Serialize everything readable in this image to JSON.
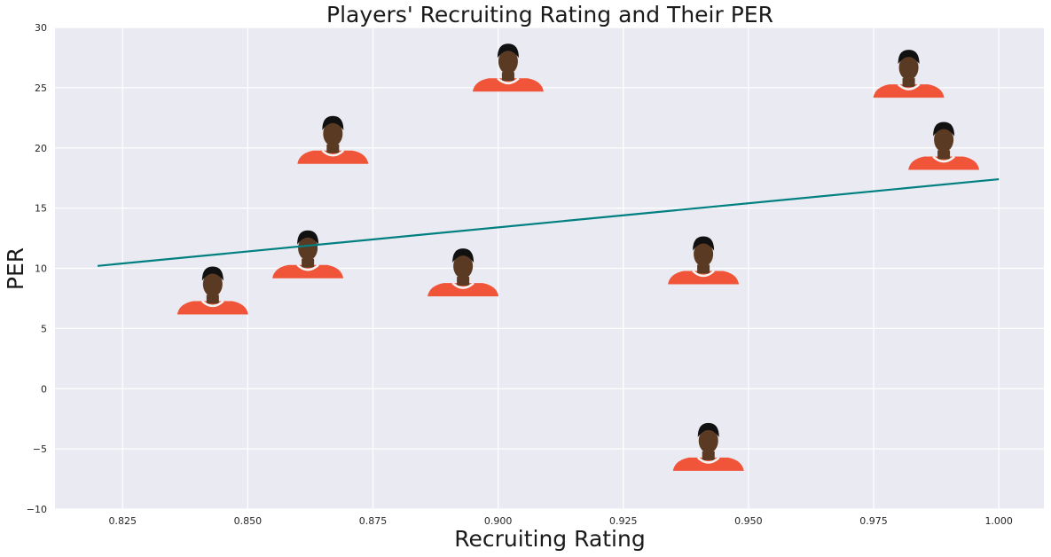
{
  "colors": {
    "plot_background": "#EAEAF2",
    "grid": "#FFFFFF",
    "trend_line": "#008080",
    "jersey": "#F0553A",
    "jersey_trim": "#F3F3F3",
    "skin": "#5A3A22",
    "hair": "#111111"
  },
  "chart_data": {
    "type": "scatter",
    "title": "Players' Recruiting Rating and Their PER",
    "xlabel": "Recruiting Rating",
    "ylabel": "PER",
    "xlim": [
      0.8115,
      1.009
    ],
    "ylim": [
      -10,
      30
    ],
    "xticks": [
      "0.825",
      "0.850",
      "0.875",
      "0.900",
      "0.925",
      "0.950",
      "0.975",
      "1.000"
    ],
    "yticks": [
      "−10",
      "−5",
      "0",
      "5",
      "10",
      "15",
      "20",
      "25",
      "30"
    ],
    "grid": true,
    "marker": "player headshot images",
    "points": [
      {
        "x": 0.843,
        "y": 7.5
      },
      {
        "x": 0.862,
        "y": 10.5
      },
      {
        "x": 0.867,
        "y": 20.0
      },
      {
        "x": 0.893,
        "y": 9.0
      },
      {
        "x": 0.902,
        "y": 26.0
      },
      {
        "x": 0.941,
        "y": 10.0
      },
      {
        "x": 0.942,
        "y": -5.5
      },
      {
        "x": 0.982,
        "y": 25.5
      },
      {
        "x": 0.989,
        "y": 19.5
      }
    ],
    "trend_line": {
      "x": [
        0.82,
        1.0
      ],
      "y": [
        10.2,
        17.4
      ]
    }
  }
}
